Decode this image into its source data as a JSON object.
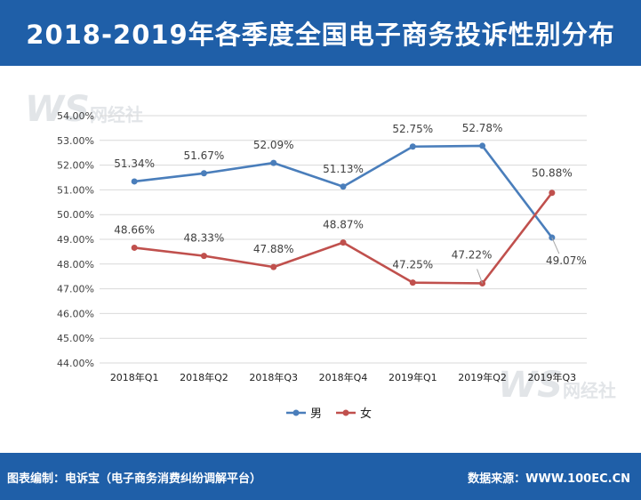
{
  "header": {
    "title": "2018-2019年各季度全国电子商务投诉性别分布"
  },
  "watermark": {
    "mark": "WS",
    "text": "网经社"
  },
  "footer": {
    "left": "图表编制：电诉宝（电子商务消费纠纷调解平台）",
    "right": "数据来源：WWW.100EC.CN"
  },
  "chart_data": {
    "type": "line",
    "categories": [
      "2018年Q1",
      "2018年Q2",
      "2018年Q3",
      "2018年Q4",
      "2019年Q1",
      "2019年Q2",
      "2019年Q3"
    ],
    "series": [
      {
        "name": "男",
        "color": "#4a7ebb",
        "values": [
          51.34,
          51.67,
          52.09,
          51.13,
          52.75,
          52.78,
          49.07
        ],
        "labels": [
          "51.34%",
          "51.67%",
          "52.09%",
          "51.13%",
          "52.75%",
          "52.78%",
          "49.07%"
        ]
      },
      {
        "name": "女",
        "color": "#c0504d",
        "values": [
          48.66,
          48.33,
          47.88,
          48.87,
          47.25,
          47.22,
          50.88
        ],
        "labels": [
          "48.66%",
          "48.33%",
          "47.88%",
          "48.87%",
          "47.25%",
          "47.22%",
          "50.88%"
        ]
      }
    ],
    "y_ticks": [
      "44.00%",
      "45.00%",
      "46.00%",
      "47.00%",
      "48.00%",
      "49.00%",
      "50.00%",
      "51.00%",
      "52.00%",
      "53.00%",
      "54.00%"
    ],
    "ylim": [
      44,
      54
    ],
    "grid": true,
    "legend": "bottom"
  }
}
